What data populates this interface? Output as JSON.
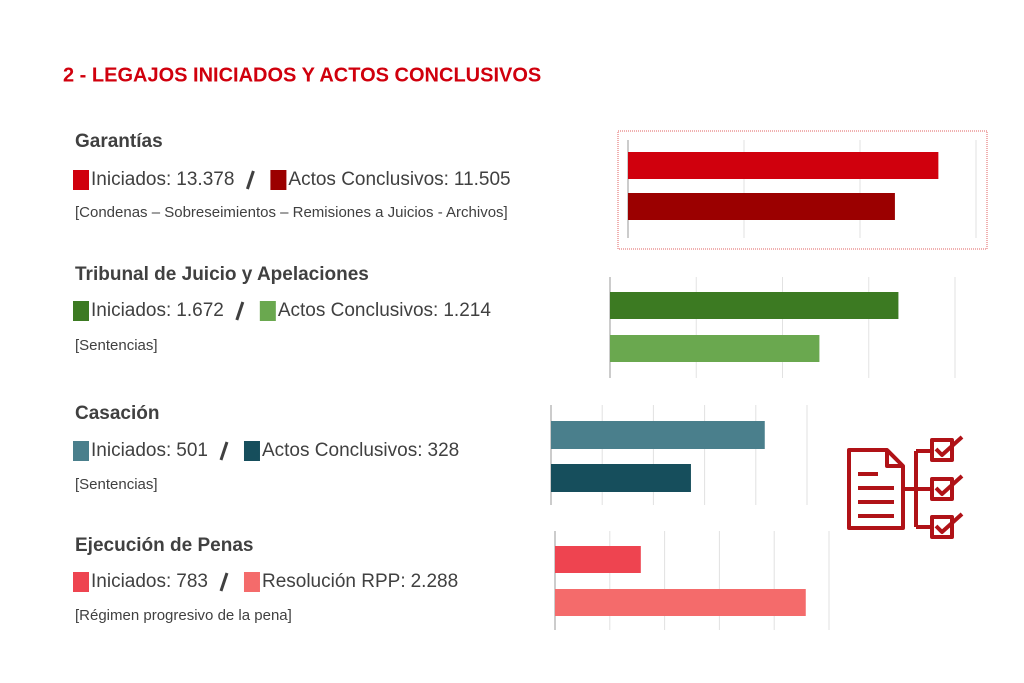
{
  "header": {
    "title": "2 - LEGAJOS INICIADOS Y ACTOS CONCLUSIVOS"
  },
  "chart_data": [
    {
      "type": "bar",
      "title": "Garantías",
      "subtitle": "[Condenas – Sobreseimientos – Remisiones a Juicios - Archivos]",
      "series": [
        {
          "name": "Iniciados:",
          "color": "#d0000d",
          "values": [
            13378
          ],
          "value_labels": [
            "13.378"
          ]
        },
        {
          "name": "Actos Conclusivos:",
          "color": "#9b0000",
          "values": [
            11505
          ],
          "value_labels": [
            "11.505"
          ]
        }
      ],
      "xlim": [
        0,
        15000
      ],
      "xticks": [
        0,
        5000,
        10000,
        15000
      ],
      "grid": true
    },
    {
      "type": "bar",
      "title": "Tribunal de Juicio y Apelaciones",
      "subtitle": "[Sentencias]",
      "series": [
        {
          "name": "Iniciados:",
          "color": "#3c7a22",
          "values": [
            1672
          ],
          "value_labels": [
            "1.672"
          ]
        },
        {
          "name": "Actos Conclusivos:",
          "color": "#6aa84f",
          "values": [
            1214
          ],
          "value_labels": [
            "1.214"
          ]
        }
      ],
      "xlim": [
        0,
        2000
      ],
      "xticks": [
        0,
        500,
        1000,
        1500,
        2000
      ],
      "grid": true
    },
    {
      "type": "bar",
      "title": "Casación",
      "subtitle": "[Sentencias]",
      "series": [
        {
          "name": "Iniciados:",
          "color": "#4a7f8c",
          "values": [
            501
          ],
          "value_labels": [
            "501"
          ]
        },
        {
          "name": "Actos Conclusivos:",
          "color": "#164e5c",
          "values": [
            328
          ],
          "value_labels": [
            "328"
          ]
        }
      ],
      "xlim": [
        0,
        600
      ],
      "xticks": [
        0,
        120,
        240,
        360,
        480,
        600
      ],
      "grid": true
    },
    {
      "type": "bar",
      "title": "Ejecución de Penas",
      "subtitle": "[Régimen progresivo de la pena]",
      "series": [
        {
          "name": "Iniciados:",
          "color": "#ee4450",
          "values": [
            783
          ],
          "value_labels": [
            "783"
          ]
        },
        {
          "name": "Resolución RPP:",
          "color": "#f46b6b",
          "values": [
            2288
          ],
          "value_labels": [
            "2.288"
          ]
        }
      ],
      "xlim": [
        0,
        2500
      ],
      "xticks": [
        0,
        500,
        1000,
        1500,
        2000,
        2500
      ],
      "grid": true
    }
  ]
}
